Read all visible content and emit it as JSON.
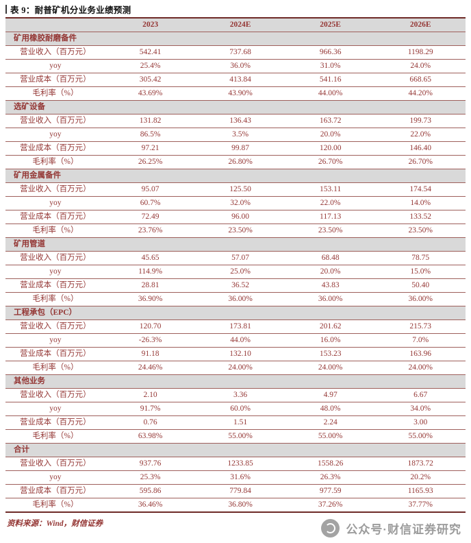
{
  "title": "表 9：耐普矿机分业务业绩预测",
  "colors": {
    "table_text": "#943634",
    "header_bg": "#d9d9d9",
    "row_border": "#9e5f5b",
    "outer_border": "#6e2a27",
    "watermark_gray": "#9c9c9c",
    "title_text": "#111111"
  },
  "table": {
    "columns": [
      "",
      "2023",
      "2024E",
      "2025E",
      "2026E"
    ],
    "sections": [
      {
        "name": "矿用橡胶耐磨备件",
        "rows": [
          {
            "label": "营业收入（百万元）",
            "values": [
              "542.41",
              "737.68",
              "966.36",
              "1198.29"
            ]
          },
          {
            "label": "yoy",
            "values": [
              "25.4%",
              "36.0%",
              "31.0%",
              "24.0%"
            ]
          },
          {
            "label": "营业成本（百万元）",
            "values": [
              "305.42",
              "413.84",
              "541.16",
              "668.65"
            ]
          },
          {
            "label": "毛利率（%）",
            "values": [
              "43.69%",
              "43.90%",
              "44.00%",
              "44.20%"
            ]
          }
        ]
      },
      {
        "name": "选矿设备",
        "rows": [
          {
            "label": "营业收入（百万元）",
            "values": [
              "131.82",
              "136.43",
              "163.72",
              "199.73"
            ]
          },
          {
            "label": "yoy",
            "values": [
              "86.5%",
              "3.5%",
              "20.0%",
              "22.0%"
            ]
          },
          {
            "label": "营业成本（百万元）",
            "values": [
              "97.21",
              "99.87",
              "120.00",
              "146.40"
            ]
          },
          {
            "label": "毛利率（%）",
            "values": [
              "26.25%",
              "26.80%",
              "26.70%",
              "26.70%"
            ]
          }
        ]
      },
      {
        "name": "矿用金属备件",
        "rows": [
          {
            "label": "营业收入（百万元）",
            "values": [
              "95.07",
              "125.50",
              "153.11",
              "174.54"
            ]
          },
          {
            "label": "yoy",
            "values": [
              "60.7%",
              "32.0%",
              "22.0%",
              "14.0%"
            ]
          },
          {
            "label": "营业成本（百万元）",
            "values": [
              "72.49",
              "96.00",
              "117.13",
              "133.52"
            ]
          },
          {
            "label": "毛利率（%）",
            "values": [
              "23.76%",
              "23.50%",
              "23.50%",
              "23.50%"
            ]
          }
        ]
      },
      {
        "name": "矿用管道",
        "rows": [
          {
            "label": "营业收入（百万元）",
            "values": [
              "45.65",
              "57.07",
              "68.48",
              "78.75"
            ]
          },
          {
            "label": "yoy",
            "values": [
              "114.9%",
              "25.0%",
              "20.0%",
              "15.0%"
            ]
          },
          {
            "label": "营业成本（百万元）",
            "values": [
              "28.81",
              "36.52",
              "43.83",
              "50.40"
            ]
          },
          {
            "label": "毛利率（%）",
            "values": [
              "36.90%",
              "36.00%",
              "36.00%",
              "36.00%"
            ]
          }
        ]
      },
      {
        "name": "工程承包（EPC）",
        "rows": [
          {
            "label": "营业收入（百万元）",
            "values": [
              "120.70",
              "173.81",
              "201.62",
              "215.73"
            ]
          },
          {
            "label": "yoy",
            "values": [
              "-26.3%",
              "44.0%",
              "16.0%",
              "7.0%"
            ]
          },
          {
            "label": "营业成本（百万元）",
            "values": [
              "91.18",
              "132.10",
              "153.23",
              "163.96"
            ]
          },
          {
            "label": "毛利率（%）",
            "values": [
              "24.46%",
              "24.00%",
              "24.00%",
              "24.00%"
            ]
          }
        ]
      },
      {
        "name": "其他业务",
        "rows": [
          {
            "label": "营业收入（百万元）",
            "values": [
              "2.10",
              "3.36",
              "4.97",
              "6.67"
            ]
          },
          {
            "label": "yoy",
            "values": [
              "91.7%",
              "60.0%",
              "48.0%",
              "34.0%"
            ]
          },
          {
            "label": "营业成本（百万元）",
            "values": [
              "0.76",
              "1.51",
              "2.24",
              "3.00"
            ]
          },
          {
            "label": "毛利率（%）",
            "values": [
              "63.98%",
              "55.00%",
              "55.00%",
              "55.00%"
            ]
          }
        ]
      },
      {
        "name": "合计",
        "rows": [
          {
            "label": "营业收入（百万元）",
            "values": [
              "937.76",
              "1233.85",
              "1558.26",
              "1873.72"
            ]
          },
          {
            "label": "yoy",
            "values": [
              "25.3%",
              "31.6%",
              "26.3%",
              "20.2%"
            ]
          },
          {
            "label": "营业成本（百万元）",
            "values": [
              "595.86",
              "779.84",
              "977.59",
              "1165.93"
            ]
          },
          {
            "label": "毛利率（%）",
            "values": [
              "36.46%",
              "36.80%",
              "37.26%",
              "37.77%"
            ]
          }
        ]
      }
    ]
  },
  "footer": {
    "source": "资料来源：Wind，财信证券"
  },
  "watermark": {
    "text": "公众号·财信证券研究",
    "icon": "brand-circle-logo-icon"
  }
}
